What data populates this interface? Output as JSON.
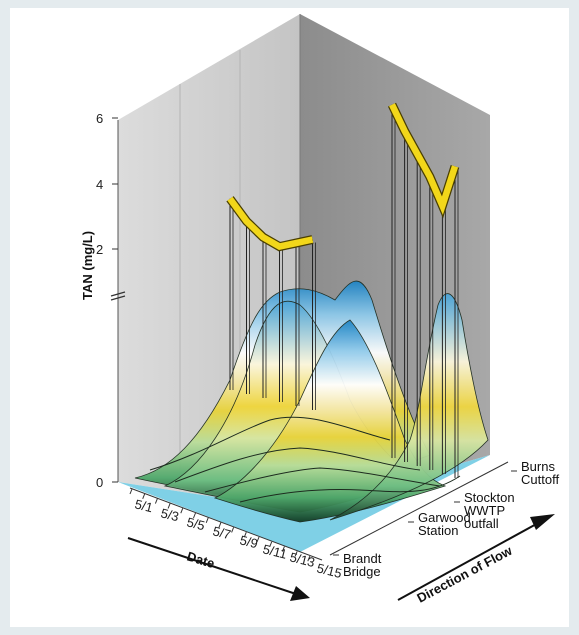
{
  "chart_data": {
    "type": "3d-surface",
    "title": "",
    "ylabel": "TAN (mg/L)",
    "xlabel": "Date",
    "zlabel": "Direction of Flow",
    "y_ticks": [
      "0",
      "2",
      "4",
      "6"
    ],
    "y_axis_break": true,
    "date_ticks": [
      "5/1",
      "5/3",
      "5/5",
      "5/7",
      "5/9",
      "5/11",
      "5/13",
      "5/15"
    ],
    "sites": [
      {
        "lines": [
          "Brandt",
          "Bridge"
        ]
      },
      {
        "lines": [
          "Garwood",
          "Station"
        ]
      },
      {
        "lines": [
          "Stockton",
          "WWTP",
          "outfall"
        ]
      },
      {
        "lines": [
          "Burns",
          "Cuttoff"
        ]
      }
    ],
    "high_series": [
      {
        "site": "Garwood Station",
        "values": [
          3.3,
          2.6,
          2.1,
          1.8,
          1.9,
          2.0
        ]
      },
      {
        "site": "Stockton WWTP outfall",
        "values": [
          6.1,
          5.3,
          4.6,
          3.9,
          3.0,
          4.2
        ]
      }
    ],
    "colors": {
      "floor": "#7fd0e6",
      "left_wall": "#c9c9c9",
      "right_wall": "#8a8a8a",
      "high_line": "#f2d71a"
    }
  }
}
